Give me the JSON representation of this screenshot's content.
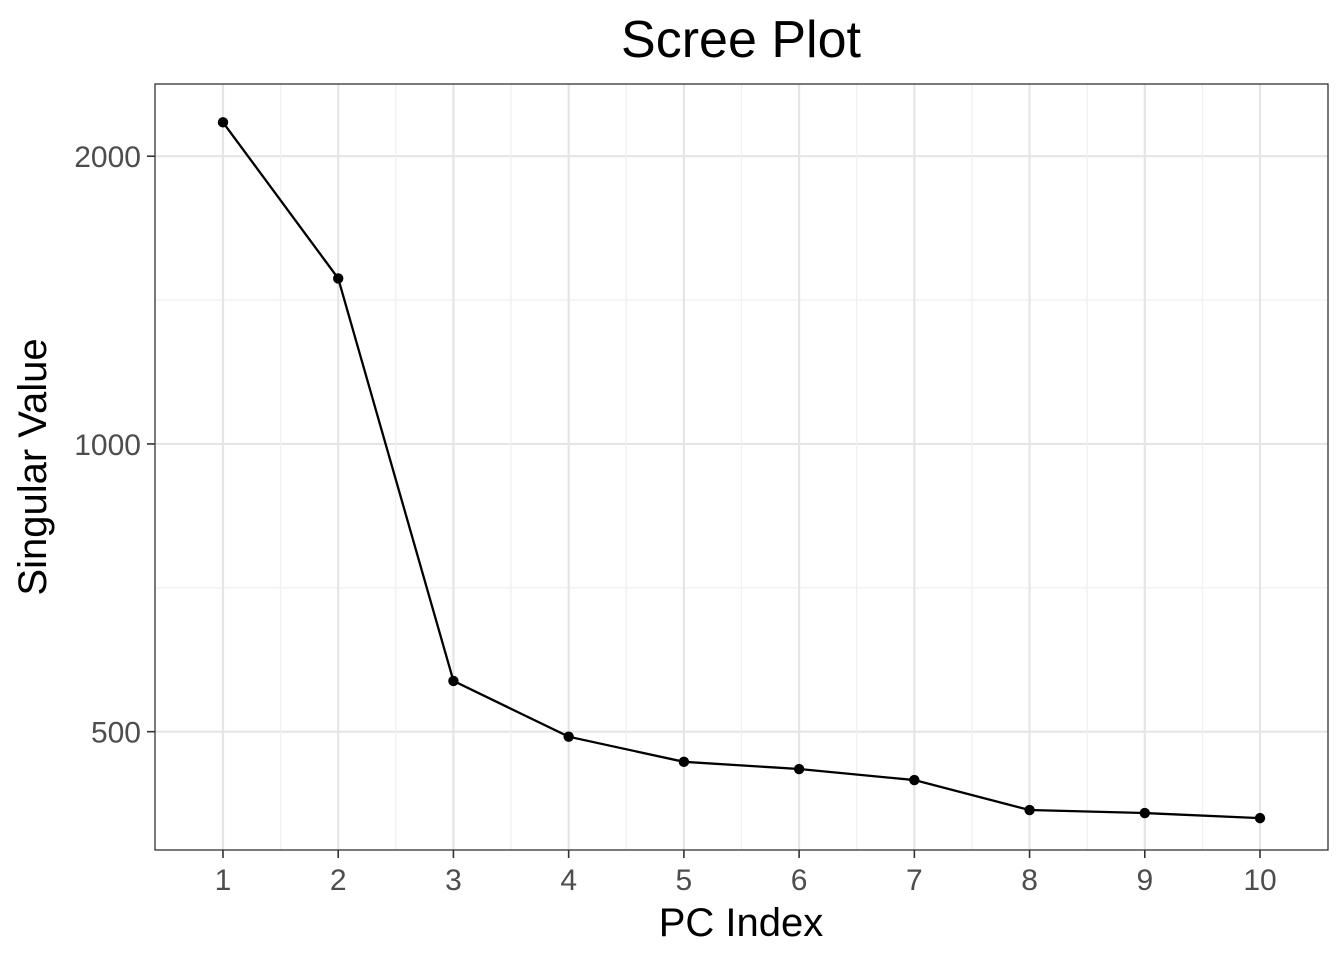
{
  "chart_data": {
    "type": "line",
    "title": "Scree Plot",
    "xlabel": "PC Index",
    "ylabel": "Singular Value",
    "y_scale": "log10",
    "x": [
      1,
      2,
      3,
      4,
      5,
      6,
      7,
      8,
      9,
      10
    ],
    "series": [
      {
        "values": [
          2170,
          1490,
          565,
          494,
          465,
          457,
          445,
          414,
          411,
          406
        ]
      }
    ],
    "x_ticks": [
      "1",
      "2",
      "3",
      "4",
      "5",
      "6",
      "7",
      "8",
      "9",
      "10"
    ],
    "y_ticks": [
      {
        "value": 500,
        "label": "500"
      },
      {
        "value": 1000,
        "label": "1000"
      },
      {
        "value": 2000,
        "label": "2000"
      }
    ],
    "xlim": [
      0.41,
      10.59
    ],
    "ylim": [
      376,
      2380
    ],
    "grid": true,
    "colors": {
      "line": "#000000",
      "point": "#000000",
      "grid_major": "#e5e5e5",
      "grid_minor": "#f0f0f0",
      "panel_border": "#333333",
      "tick_text": "#4d4d4d"
    }
  }
}
